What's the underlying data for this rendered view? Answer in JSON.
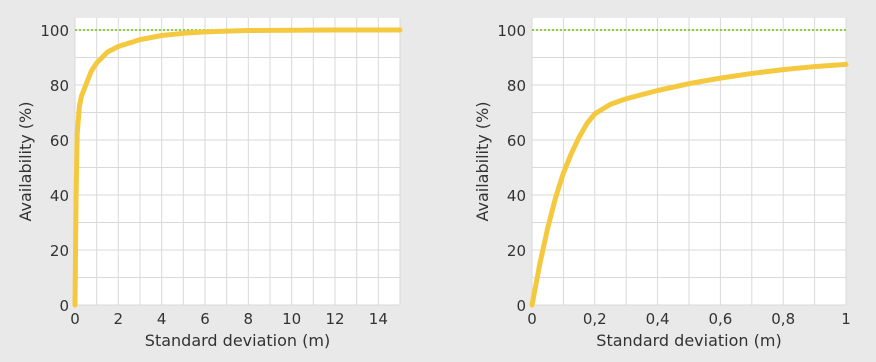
{
  "colors": {
    "background": "#e9e9ea",
    "plot_background": "#ffffff",
    "grid": "#d9d9d9",
    "curve": "#f5c93f",
    "reference_line": "#8fce3a",
    "text": "#333333"
  },
  "chart_data": [
    {
      "type": "line",
      "title": "",
      "xlabel": "Standard deviation (m)",
      "ylabel": "Availability (%)",
      "xlim": [
        0,
        15
      ],
      "ylim": [
        0,
        100
      ],
      "x_ticks": [
        0,
        2,
        4,
        6,
        8,
        10,
        12,
        14
      ],
      "x_tick_labels": [
        "0",
        "2",
        "4",
        "6",
        "8",
        "10",
        "12",
        "14"
      ],
      "y_ticks": [
        0,
        20,
        40,
        60,
        80,
        100
      ],
      "y_tick_labels": [
        "0",
        "20",
        "40",
        "60",
        "80",
        "100"
      ],
      "grid": true,
      "reference_line": {
        "y": 100,
        "style": "dotted"
      },
      "series": [
        {
          "x": [
            0,
            0.05,
            0.1,
            0.2,
            0.3,
            0.5,
            0.75,
            1,
            1.5,
            2,
            3,
            4,
            5,
            6,
            7,
            8,
            10,
            12,
            15
          ],
          "y": [
            0,
            40,
            62,
            72,
            76,
            80,
            85,
            88,
            92,
            94,
            96.5,
            98,
            98.8,
            99.3,
            99.6,
            99.8,
            99.9,
            100,
            100
          ]
        }
      ]
    },
    {
      "type": "line",
      "title": "",
      "xlabel": "Standard deviation (m)",
      "ylabel": "Availability (%)",
      "xlim": [
        0,
        1
      ],
      "ylim": [
        0,
        100
      ],
      "x_ticks": [
        0,
        0.2,
        0.4,
        0.6,
        0.8,
        1
      ],
      "x_tick_labels": [
        "0",
        "0,2",
        "0,4",
        "0,6",
        "0,8",
        "1"
      ],
      "y_ticks": [
        0,
        20,
        40,
        60,
        80,
        100
      ],
      "y_tick_labels": [
        "0",
        "20",
        "40",
        "60",
        "80",
        "100"
      ],
      "grid": true,
      "reference_line": {
        "y": 100,
        "style": "dotted"
      },
      "series": [
        {
          "x": [
            0,
            0.025,
            0.05,
            0.075,
            0.1,
            0.125,
            0.15,
            0.175,
            0.2,
            0.25,
            0.3,
            0.4,
            0.5,
            0.6,
            0.7,
            0.8,
            0.9,
            1
          ],
          "y": [
            0,
            15,
            28,
            39,
            48,
            55,
            61,
            66,
            69.5,
            73,
            75,
            78,
            80.5,
            82.5,
            84.2,
            85.6,
            86.7,
            87.5
          ]
        }
      ]
    }
  ]
}
